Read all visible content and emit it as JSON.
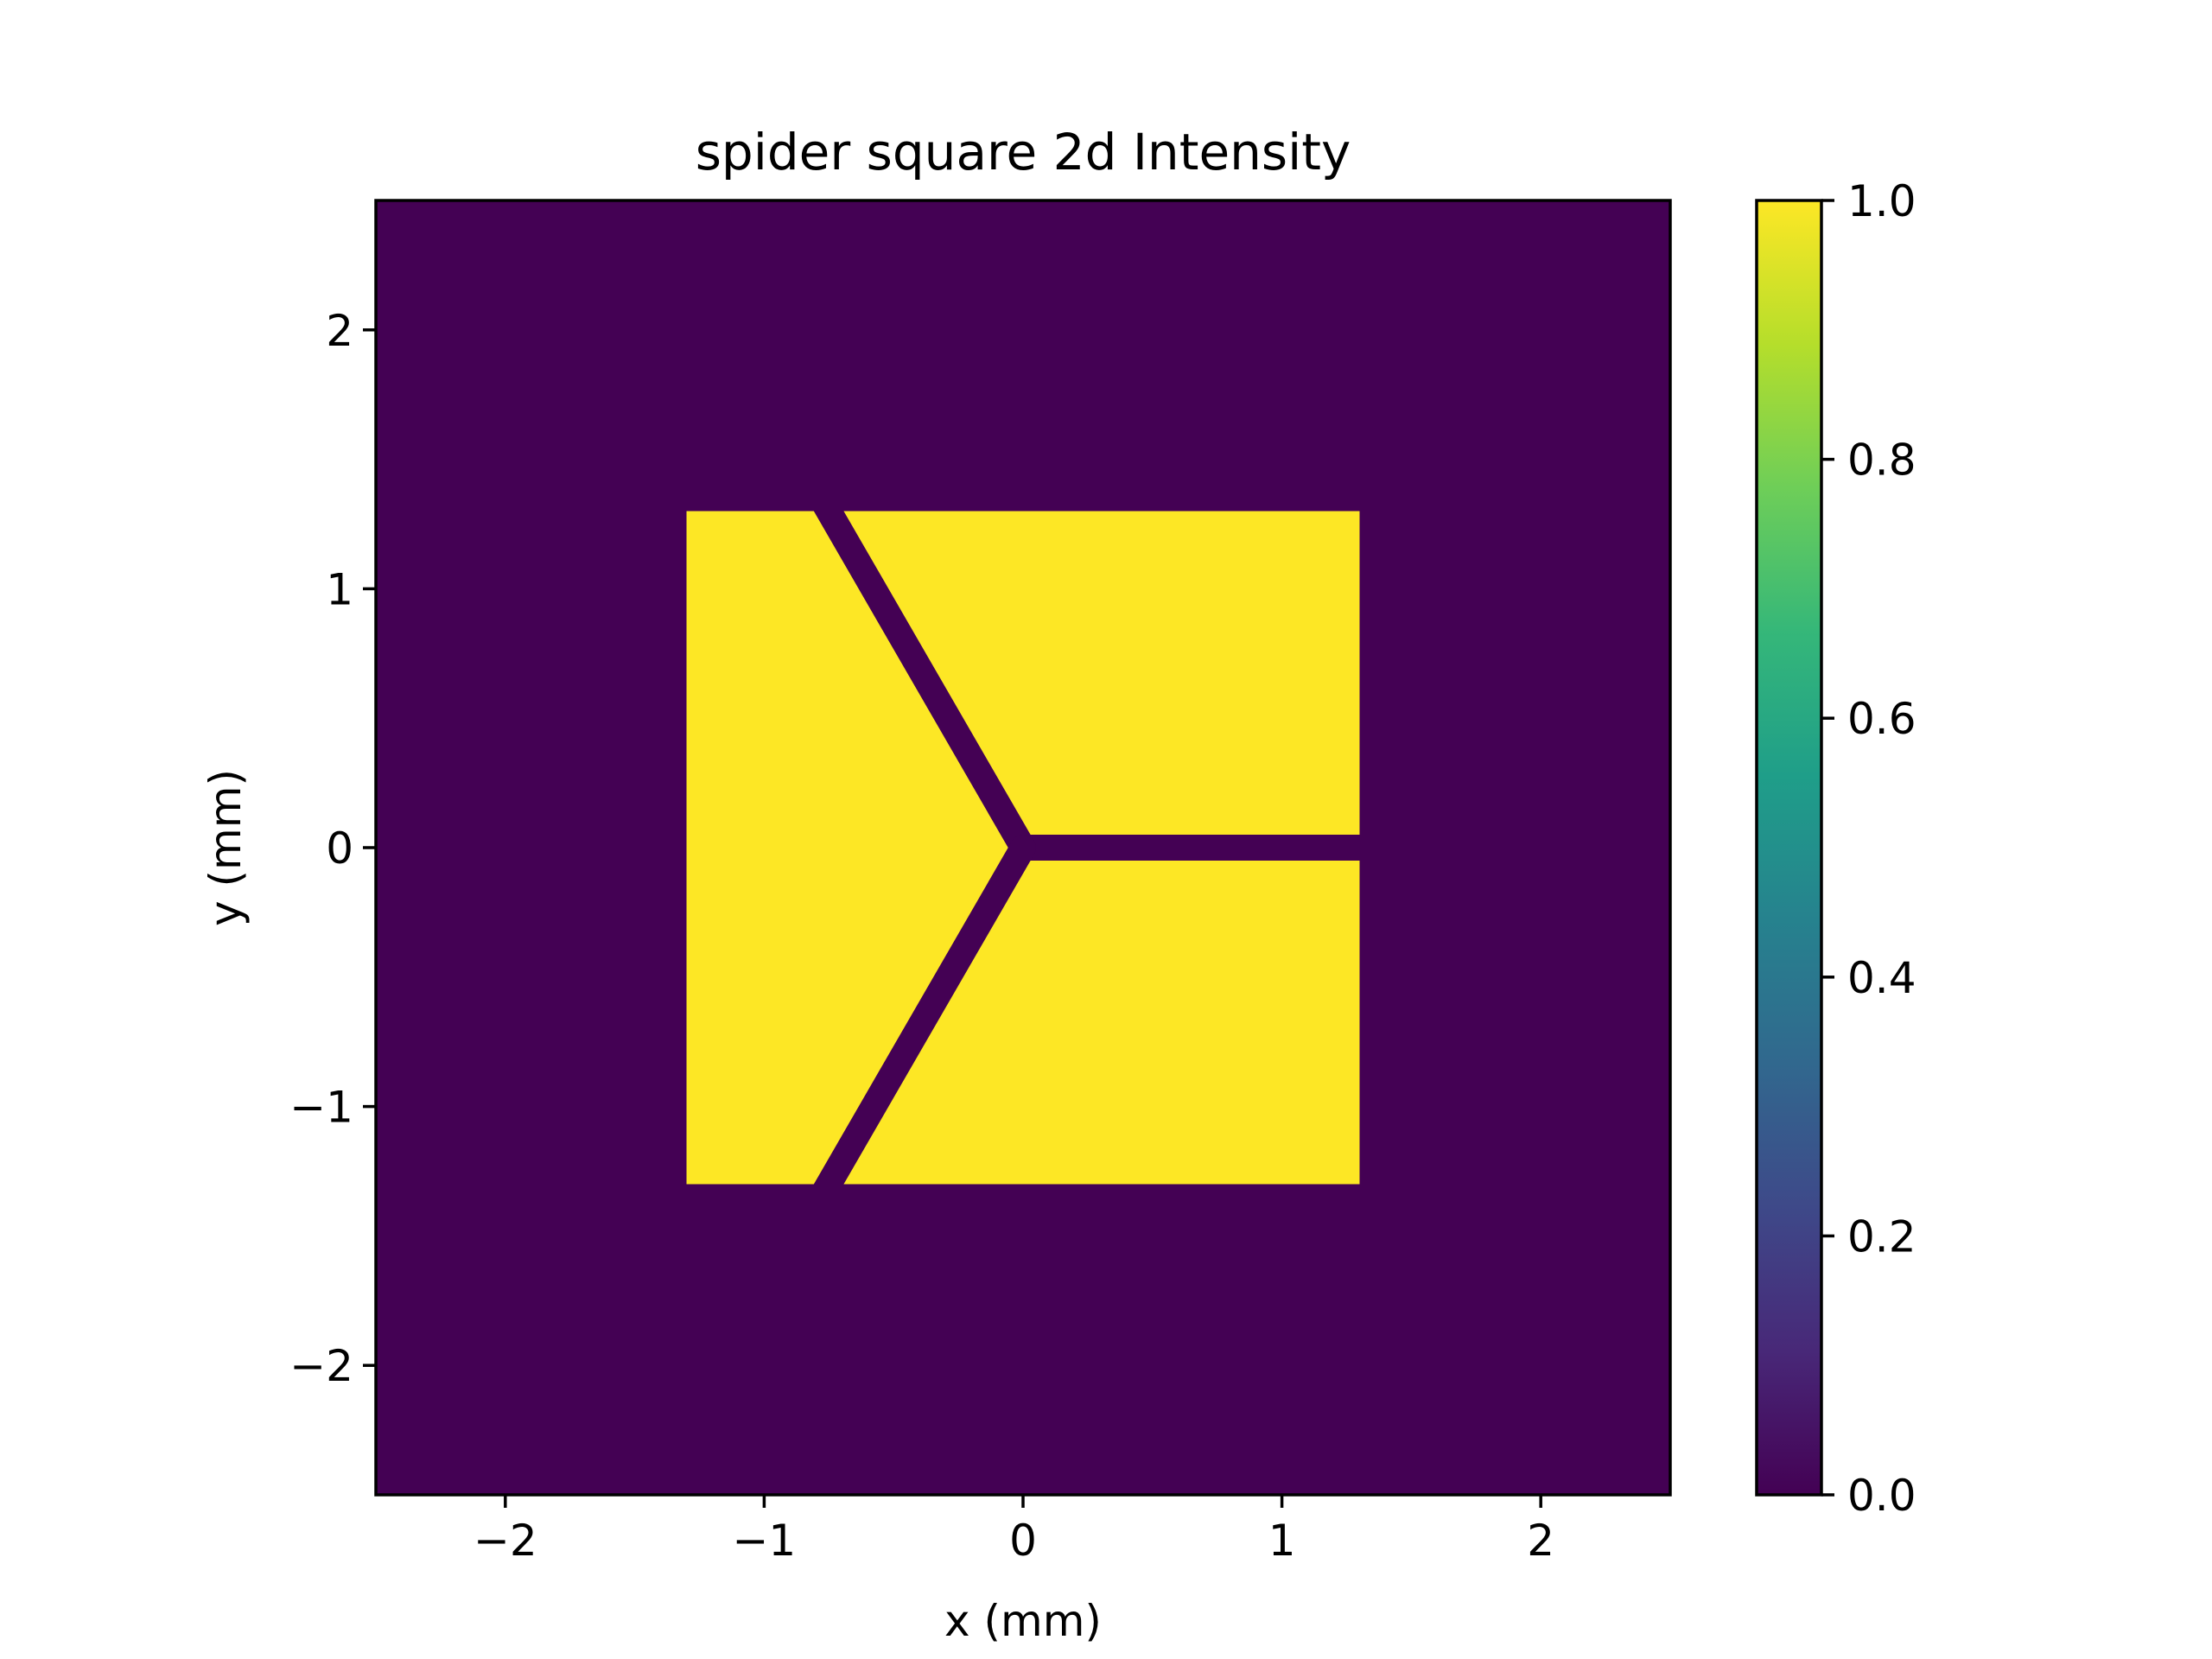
{
  "chart_data": {
    "type": "heatmap",
    "title": "spider square 2d Intensity",
    "xlabel": "x (mm)",
    "ylabel": "y (mm)",
    "xlim": [
      -2.5,
      2.5
    ],
    "ylim": [
      -2.5,
      2.5
    ],
    "x_ticks": [
      -2,
      -1,
      0,
      1,
      2
    ],
    "y_ticks": [
      -2,
      -1,
      0,
      1,
      2
    ],
    "x_tick_labels": [
      "−2",
      "−1",
      "0",
      "1",
      "2"
    ],
    "y_tick_labels": [
      "−2",
      "−1",
      "0",
      "1",
      "2"
    ],
    "colormap": "viridis",
    "colormap_stops": [
      "#440154",
      "#482878",
      "#3e4989",
      "#31688e",
      "#26828e",
      "#1f9e89",
      "#35b779",
      "#6ece58",
      "#b5de2b",
      "#fde725"
    ],
    "background_value": 0.0,
    "aperture": {
      "shape": "square",
      "x_range": [
        -1.3,
        1.3
      ],
      "y_range": [
        -1.3,
        1.3
      ],
      "value": 1.0
    },
    "spider": {
      "value": 0.0,
      "vane_count": 3,
      "vane_width_mm": 0.1,
      "vane_angles_deg": [
        0,
        120,
        240
      ],
      "center": [
        0,
        0
      ]
    },
    "colorbar": {
      "range": [
        0.0,
        1.0
      ],
      "ticks": [
        0.0,
        0.2,
        0.4,
        0.6,
        0.8,
        1.0
      ],
      "tick_labels": [
        "0.0",
        "0.2",
        "0.4",
        "0.6",
        "0.8",
        "1.0"
      ]
    },
    "grid": false
  }
}
